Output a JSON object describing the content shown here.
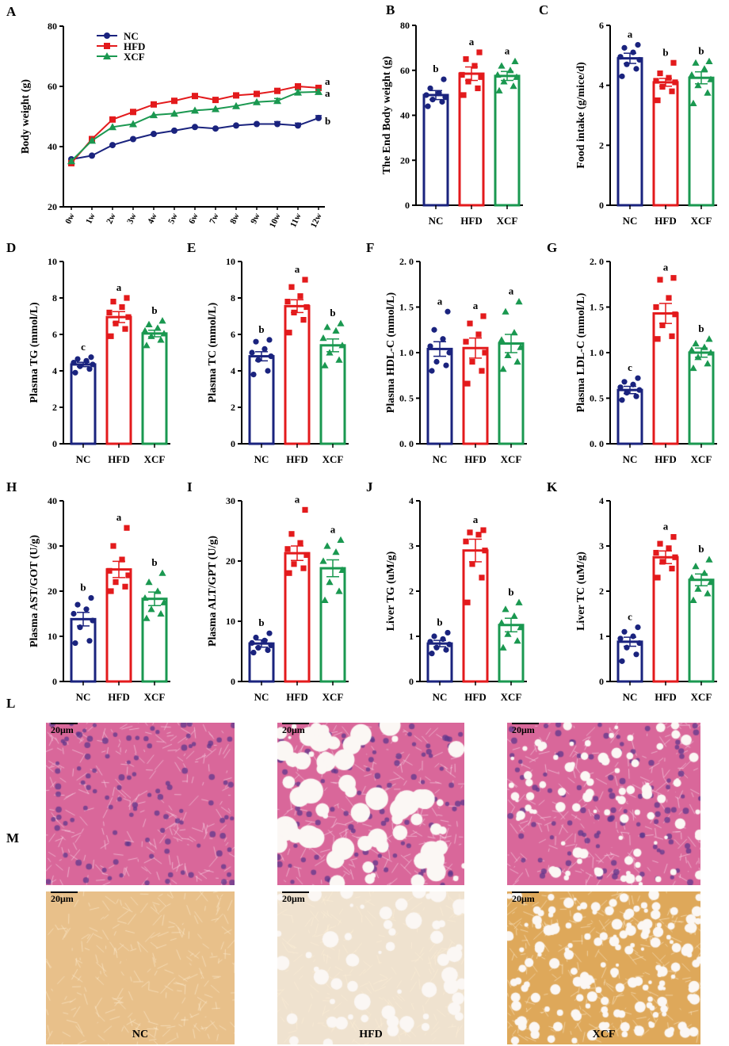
{
  "colors": {
    "NC": "#1a237e",
    "HFD": "#e31a1c",
    "XCF": "#1a9850"
  },
  "chart_data": [
    {
      "id": "A",
      "type": "line",
      "panel_label": "A",
      "ylabel": "Body weight (g)",
      "ylim": [
        20,
        80
      ],
      "yticks": [
        20,
        40,
        60,
        80
      ],
      "categories": [
        "0w",
        "1w",
        "2w",
        "3w",
        "4w",
        "5w",
        "6w",
        "7w",
        "8w",
        "9w",
        "10w",
        "11w",
        "12w"
      ],
      "series": [
        {
          "name": "NC",
          "values": [
            35.8,
            37.0,
            40.5,
            42.5,
            44.2,
            45.3,
            46.5,
            46.0,
            47.0,
            47.5,
            47.5,
            47.0,
            49.5
          ]
        },
        {
          "name": "HFD",
          "values": [
            34.5,
            42.5,
            49.0,
            51.5,
            54.0,
            55.2,
            56.8,
            55.5,
            57.0,
            57.5,
            58.5,
            60.0,
            59.5
          ]
        },
        {
          "name": "XCF",
          "values": [
            35.2,
            42.0,
            46.5,
            47.5,
            50.5,
            51.0,
            52.0,
            52.5,
            53.5,
            54.8,
            55.2,
            58.0,
            58.2
          ]
        }
      ],
      "sig_labels": [
        "a",
        "a",
        "b"
      ],
      "legend": [
        "NC",
        "HFD",
        "XCF"
      ]
    },
    {
      "id": "B",
      "type": "bar",
      "panel_label": "B",
      "ylabel": "The End Body weight (g)",
      "ylim": [
        0,
        80
      ],
      "yticks": [
        0,
        20,
        40,
        60,
        80
      ],
      "categories": [
        "NC",
        "HFD",
        "XCF"
      ],
      "values": [
        49,
        58.5,
        57.5
      ],
      "errors": [
        2,
        3,
        2
      ],
      "sig_labels": [
        "b",
        "a",
        "a"
      ],
      "points": [
        [
          44,
          46,
          47,
          48,
          49,
          50,
          52,
          56
        ],
        [
          49,
          52,
          55,
          57,
          58,
          62,
          65,
          68
        ],
        [
          51,
          53,
          55,
          57,
          58,
          60,
          62,
          64
        ]
      ]
    },
    {
      "id": "C",
      "type": "bar",
      "panel_label": "C",
      "ylabel": "Food intake (g/mice/d)",
      "ylim": [
        0,
        6
      ],
      "yticks": [
        0,
        2,
        4,
        6
      ],
      "categories": [
        "NC",
        "HFD",
        "XCF"
      ],
      "values": [
        4.9,
        4.1,
        4.25
      ],
      "errors": [
        0.17,
        0.13,
        0.2
      ],
      "sig_labels": [
        "a",
        "b",
        "b"
      ],
      "points": [
        [
          4.3,
          4.55,
          4.7,
          4.85,
          4.95,
          5.1,
          5.25,
          5.35
        ],
        [
          3.5,
          3.8,
          3.95,
          4.1,
          4.15,
          4.25,
          4.4,
          4.75
        ],
        [
          3.4,
          3.75,
          4.0,
          4.2,
          4.35,
          4.55,
          4.75,
          4.8
        ]
      ]
    },
    {
      "id": "D",
      "type": "bar",
      "panel_label": "D",
      "ylabel": "Plasma TG (mmol/L)",
      "ylim": [
        0,
        10
      ],
      "yticks": [
        0,
        2,
        4,
        6,
        8,
        10
      ],
      "categories": [
        "NC",
        "HFD",
        "XCF"
      ],
      "values": [
        4.35,
        6.95,
        6.05
      ],
      "errors": [
        0.12,
        0.3,
        0.18
      ],
      "sig_labels": [
        "c",
        "a",
        "b"
      ],
      "points": [
        [
          3.9,
          4.1,
          4.25,
          4.35,
          4.45,
          4.55,
          4.65,
          4.75
        ],
        [
          5.9,
          6.3,
          6.6,
          6.95,
          7.2,
          7.5,
          7.8,
          8.0
        ],
        [
          5.4,
          5.7,
          5.9,
          6.05,
          6.2,
          6.35,
          6.55,
          6.75
        ]
      ]
    },
    {
      "id": "E",
      "type": "bar",
      "panel_label": "E",
      "ylabel": "Plasma TC (mmol/L)",
      "ylim": [
        0,
        10
      ],
      "yticks": [
        0,
        2,
        4,
        6,
        8,
        10
      ],
      "categories": [
        "NC",
        "HFD",
        "XCF"
      ],
      "values": [
        4.8,
        7.55,
        5.4
      ],
      "errors": [
        0.25,
        0.35,
        0.35
      ],
      "sig_labels": [
        "b",
        "a",
        "b"
      ],
      "points": [
        [
          3.8,
          4.0,
          4.6,
          4.8,
          5.0,
          5.2,
          5.6,
          5.7
        ],
        [
          6.1,
          6.8,
          7.2,
          7.5,
          7.8,
          8.1,
          8.6,
          9.0
        ],
        [
          4.3,
          4.6,
          5.0,
          5.4,
          5.8,
          6.2,
          6.4,
          6.6
        ]
      ]
    },
    {
      "id": "F",
      "type": "bar",
      "panel_label": "F",
      "ylabel": "Plasma HDL-C (mmol/L)",
      "ylim": [
        0,
        2.0
      ],
      "yticks": [
        0.0,
        0.5,
        1.0,
        1.5,
        2.0
      ],
      "ytick_labels": [
        "0. 0",
        "0. 5",
        "1. 0",
        "1. 5",
        "2. 0"
      ],
      "categories": [
        "NC",
        "HFD",
        "XCF"
      ],
      "values": [
        1.04,
        1.05,
        1.1
      ],
      "errors": [
        0.08,
        0.11,
        0.1
      ],
      "sig_labels": [
        "a",
        "a",
        "a"
      ],
      "points": [
        [
          0.8,
          0.86,
          0.9,
          1.0,
          1.07,
          1.15,
          1.25,
          1.45
        ],
        [
          0.66,
          0.8,
          0.9,
          1.0,
          1.12,
          1.2,
          1.32,
          1.4
        ],
        [
          0.82,
          0.9,
          0.97,
          1.06,
          1.14,
          1.22,
          1.45,
          1.56
        ]
      ]
    },
    {
      "id": "G",
      "type": "bar",
      "panel_label": "G",
      "ylabel": "Plasma LDL-C (mmol/L)",
      "ylim": [
        0,
        2.0
      ],
      "yticks": [
        0.0,
        0.5,
        1.0,
        1.5,
        2.0
      ],
      "ytick_labels": [
        "0. 0",
        "0. 5",
        "1. 0",
        "1. 5",
        "2. 0"
      ],
      "categories": [
        "NC",
        "HFD",
        "XCF"
      ],
      "values": [
        0.59,
        1.43,
        1.0
      ],
      "errors": [
        0.04,
        0.11,
        0.05
      ],
      "sig_labels": [
        "c",
        "a",
        "b"
      ],
      "points": [
        [
          0.48,
          0.52,
          0.56,
          0.59,
          0.62,
          0.65,
          0.68,
          0.72
        ],
        [
          1.15,
          1.18,
          1.3,
          1.42,
          1.5,
          1.6,
          1.8,
          1.82
        ],
        [
          0.83,
          0.88,
          0.95,
          1.0,
          1.03,
          1.06,
          1.1,
          1.15
        ]
      ]
    },
    {
      "id": "H",
      "type": "bar",
      "panel_label": "H",
      "ylabel": "Plasma AST/GOT (U/g)",
      "ylim": [
        0,
        40
      ],
      "yticks": [
        0,
        10,
        20,
        30,
        40
      ],
      "categories": [
        "NC",
        "HFD",
        "XCF"
      ],
      "values": [
        13.8,
        24.8,
        18.3
      ],
      "errors": [
        1.5,
        1.8,
        1.5
      ],
      "sig_labels": [
        "b",
        "a",
        "b"
      ],
      "points": [
        [
          8.5,
          9,
          12,
          13.5,
          15,
          16,
          17,
          18.5
        ],
        [
          20,
          21,
          22,
          23.5,
          24.5,
          27,
          30,
          34
        ],
        [
          14,
          15,
          16,
          17.5,
          18.5,
          20,
          22,
          24
        ]
      ]
    },
    {
      "id": "I",
      "type": "bar",
      "panel_label": "I",
      "ylabel": "Plasma ALT/GPT (U/g)",
      "ylim": [
        0,
        30
      ],
      "yticks": [
        0,
        10,
        20,
        30
      ],
      "categories": [
        "NC",
        "HFD",
        "XCF"
      ],
      "values": [
        6.3,
        21.3,
        18.8
      ],
      "errors": [
        0.6,
        1.2,
        1.4
      ],
      "sig_labels": [
        "b",
        "a",
        "a"
      ],
      "points": [
        [
          4.8,
          5.2,
          5.6,
          6.0,
          6.4,
          6.8,
          7.3,
          8.0
        ],
        [
          18,
          18.8,
          19.5,
          21,
          22,
          23,
          24.5,
          28.5
        ],
        [
          13.5,
          15,
          16.5,
          18.5,
          20,
          21.5,
          22.5,
          23.5
        ]
      ]
    },
    {
      "id": "J",
      "type": "bar",
      "panel_label": "J",
      "ylabel": "Liver TG (uM/g)",
      "ylim": [
        0,
        4
      ],
      "yticks": [
        0,
        1,
        2,
        3,
        4
      ],
      "categories": [
        "NC",
        "HFD",
        "XCF"
      ],
      "values": [
        0.84,
        2.9,
        1.25
      ],
      "errors": [
        0.07,
        0.25,
        0.15
      ],
      "sig_labels": [
        "b",
        "a",
        "b"
      ],
      "points": [
        [
          0.62,
          0.7,
          0.75,
          0.82,
          0.88,
          0.94,
          1.0,
          1.08
        ],
        [
          1.75,
          2.3,
          2.6,
          2.9,
          3.1,
          3.25,
          3.3,
          3.35
        ],
        [
          0.75,
          0.9,
          1.05,
          1.2,
          1.3,
          1.45,
          1.6,
          1.75
        ]
      ]
    },
    {
      "id": "K",
      "type": "bar",
      "panel_label": "K",
      "ylabel": "Liver TC (uM/g)",
      "ylim": [
        0,
        4
      ],
      "yticks": [
        0,
        1,
        2,
        3,
        4
      ],
      "categories": [
        "NC",
        "HFD",
        "XCF"
      ],
      "values": [
        0.88,
        2.75,
        2.25
      ],
      "errors": [
        0.1,
        0.14,
        0.13
      ],
      "sig_labels": [
        "c",
        "a",
        "b"
      ],
      "points": [
        [
          0.45,
          0.6,
          0.75,
          0.85,
          0.95,
          1.0,
          1.1,
          1.2
        ],
        [
          2.3,
          2.5,
          2.65,
          2.75,
          2.85,
          2.95,
          3.05,
          3.2
        ],
        [
          1.8,
          1.95,
          2.05,
          2.2,
          2.3,
          2.4,
          2.55,
          2.7
        ]
      ]
    }
  ],
  "micrographs": {
    "row_L_label": "L",
    "row_M_label": "M",
    "scale_bar": "20μm",
    "columns": [
      "NC",
      "HFD",
      "XCF"
    ]
  }
}
